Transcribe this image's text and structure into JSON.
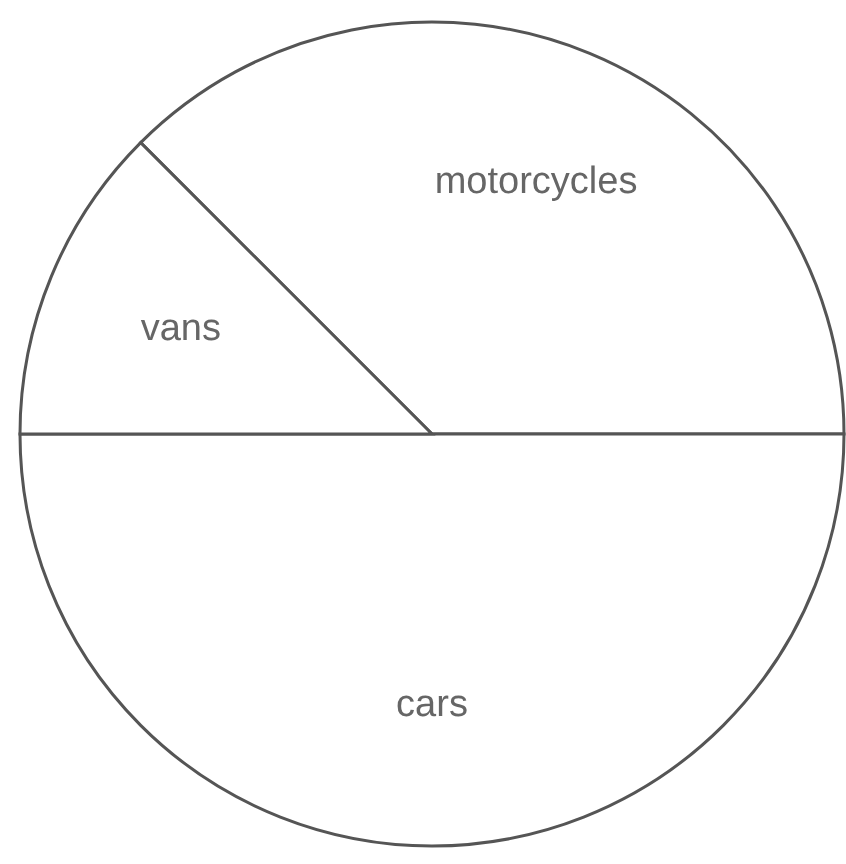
{
  "chart_data": {
    "type": "pie",
    "categories": [
      "motorcycles",
      "cars",
      "vans"
    ],
    "values": [
      37.5,
      50,
      12.5
    ],
    "colors": [
      "#ffffff",
      "#ffffff",
      "#ffffff"
    ]
  }
}
